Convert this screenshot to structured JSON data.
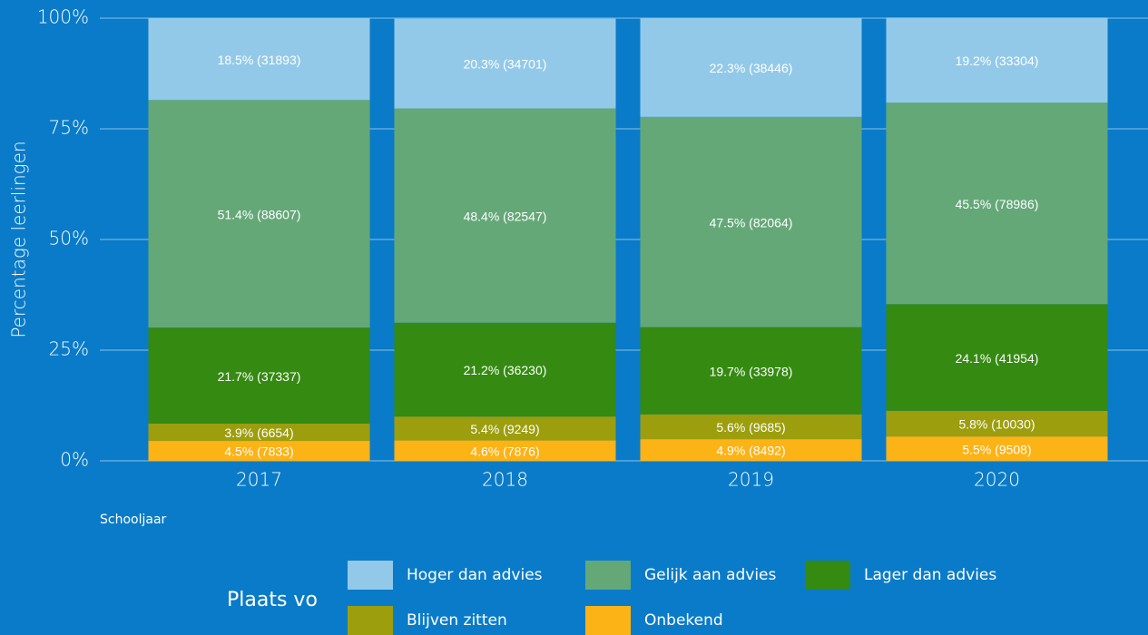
{
  "chart_data": {
    "type": "stacked_bar_100",
    "ylabel": "Percentage leerlingen",
    "xlabel": "Schooljaar",
    "legend_title": "Plaats vo",
    "legend": "bottom",
    "grid": true,
    "categories": [
      "2017",
      "2018",
      "2019",
      "2020"
    ],
    "ylim": [
      0,
      100
    ],
    "yticks": [
      {
        "value": 0,
        "label": "0%"
      },
      {
        "value": 25,
        "label": "25%"
      },
      {
        "value": 50,
        "label": "50%"
      },
      {
        "value": 75,
        "label": "75%"
      },
      {
        "value": 100,
        "label": "100%"
      }
    ],
    "series": [
      {
        "name": "Hoger dan advies",
        "color": "#93c9e8",
        "values": [
          18.5,
          20.3,
          22.3,
          19.2
        ],
        "value_labels": [
          "18.5% (31893)",
          "20.3% (34701)",
          "22.3% (38446)",
          "19.2% (33304)"
        ]
      },
      {
        "name": "Gelijk aan advies",
        "color": "#64a878",
        "values": [
          51.4,
          48.4,
          47.5,
          45.5
        ],
        "value_labels": [
          "51.4% (88607)",
          "48.4% (82547)",
          "47.5% (82064)",
          "45.5% (78986)"
        ]
      },
      {
        "name": "Lager dan advies",
        "color": "#358a12",
        "values": [
          21.7,
          21.2,
          19.7,
          24.1
        ],
        "value_labels": [
          "21.7% (37337)",
          "21.2% (36230)",
          "19.7% (33978)",
          "24.1% (41954)"
        ]
      },
      {
        "name": "Blijven zitten",
        "color": "#9c9e0e",
        "values": [
          3.9,
          5.4,
          5.6,
          5.8
        ],
        "value_labels": [
          "3.9% (6654)",
          "5.4% (9249)",
          "5.6% (9685)",
          "5.8% (10030)"
        ]
      },
      {
        "name": "Onbekend",
        "color": "#fcb316",
        "values": [
          4.5,
          4.6,
          4.9,
          5.5
        ],
        "value_labels": [
          "4.5% (7833)",
          "4.6% (7876)",
          "4.9% (8492)",
          "5.5% (9508)"
        ]
      }
    ]
  }
}
